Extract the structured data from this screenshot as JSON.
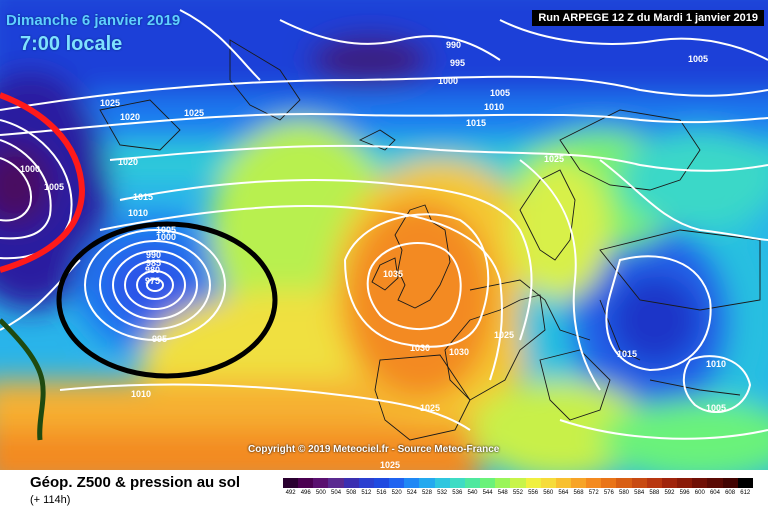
{
  "header": {
    "date": "Dimanche 6 janvier 2019",
    "time": "7:00 locale",
    "run": "Run ARPEGE 12 Z du Mardi 1 janvier 2019"
  },
  "map": {
    "copyright": "Copyright © 2019 Meteociel.fr - Source Meteo-France",
    "isobar_labels": [
      "990",
      "995",
      "1000",
      "1005",
      "1010",
      "1015",
      "1025",
      "1025",
      "1020",
      "1020",
      "1000",
      "1005",
      "1005",
      "1015",
      "1010",
      "1005",
      "1000",
      "990",
      "985",
      "980",
      "975",
      "995",
      "1010",
      "1035",
      "1030",
      "1030",
      "1025",
      "1025",
      "1025",
      "1015",
      "1010",
      "1005",
      "1025"
    ],
    "colors": {
      "low": "#2f2aa0",
      "high": "#ff8a1c",
      "front_red": "#ff1a1a",
      "circle": "#000000",
      "front_green": "#1f4a10"
    }
  },
  "footer": {
    "field": "Géop. Z500 & pression au sol",
    "horizon": "(+ 114h)",
    "scale_labels": [
      "492",
      "496",
      "500",
      "504",
      "508",
      "512",
      "516",
      "520",
      "524",
      "528",
      "532",
      "536",
      "540",
      "544",
      "548",
      "552",
      "556",
      "560",
      "564",
      "568",
      "572",
      "576",
      "580",
      "584",
      "588",
      "592",
      "596",
      "600",
      "604",
      "608",
      "612"
    ],
    "scale_colors": [
      "#2a0030",
      "#4a0050",
      "#5a1070",
      "#5a2a90",
      "#3b2fb0",
      "#2b3fd0",
      "#1f4ae0",
      "#1f63f0",
      "#1f88f5",
      "#24a9ef",
      "#2fc6df",
      "#3fdcc4",
      "#4fe89f",
      "#6af27a",
      "#9af55a",
      "#c8f44a",
      "#f0f040",
      "#f6dc3a",
      "#f8c030",
      "#f7a428",
      "#f48a20",
      "#e97418",
      "#d85e14",
      "#c84a12",
      "#b83610",
      "#a0240c",
      "#8a1a08",
      "#701006",
      "#5a0a04",
      "#420402",
      "#000000"
    ]
  }
}
